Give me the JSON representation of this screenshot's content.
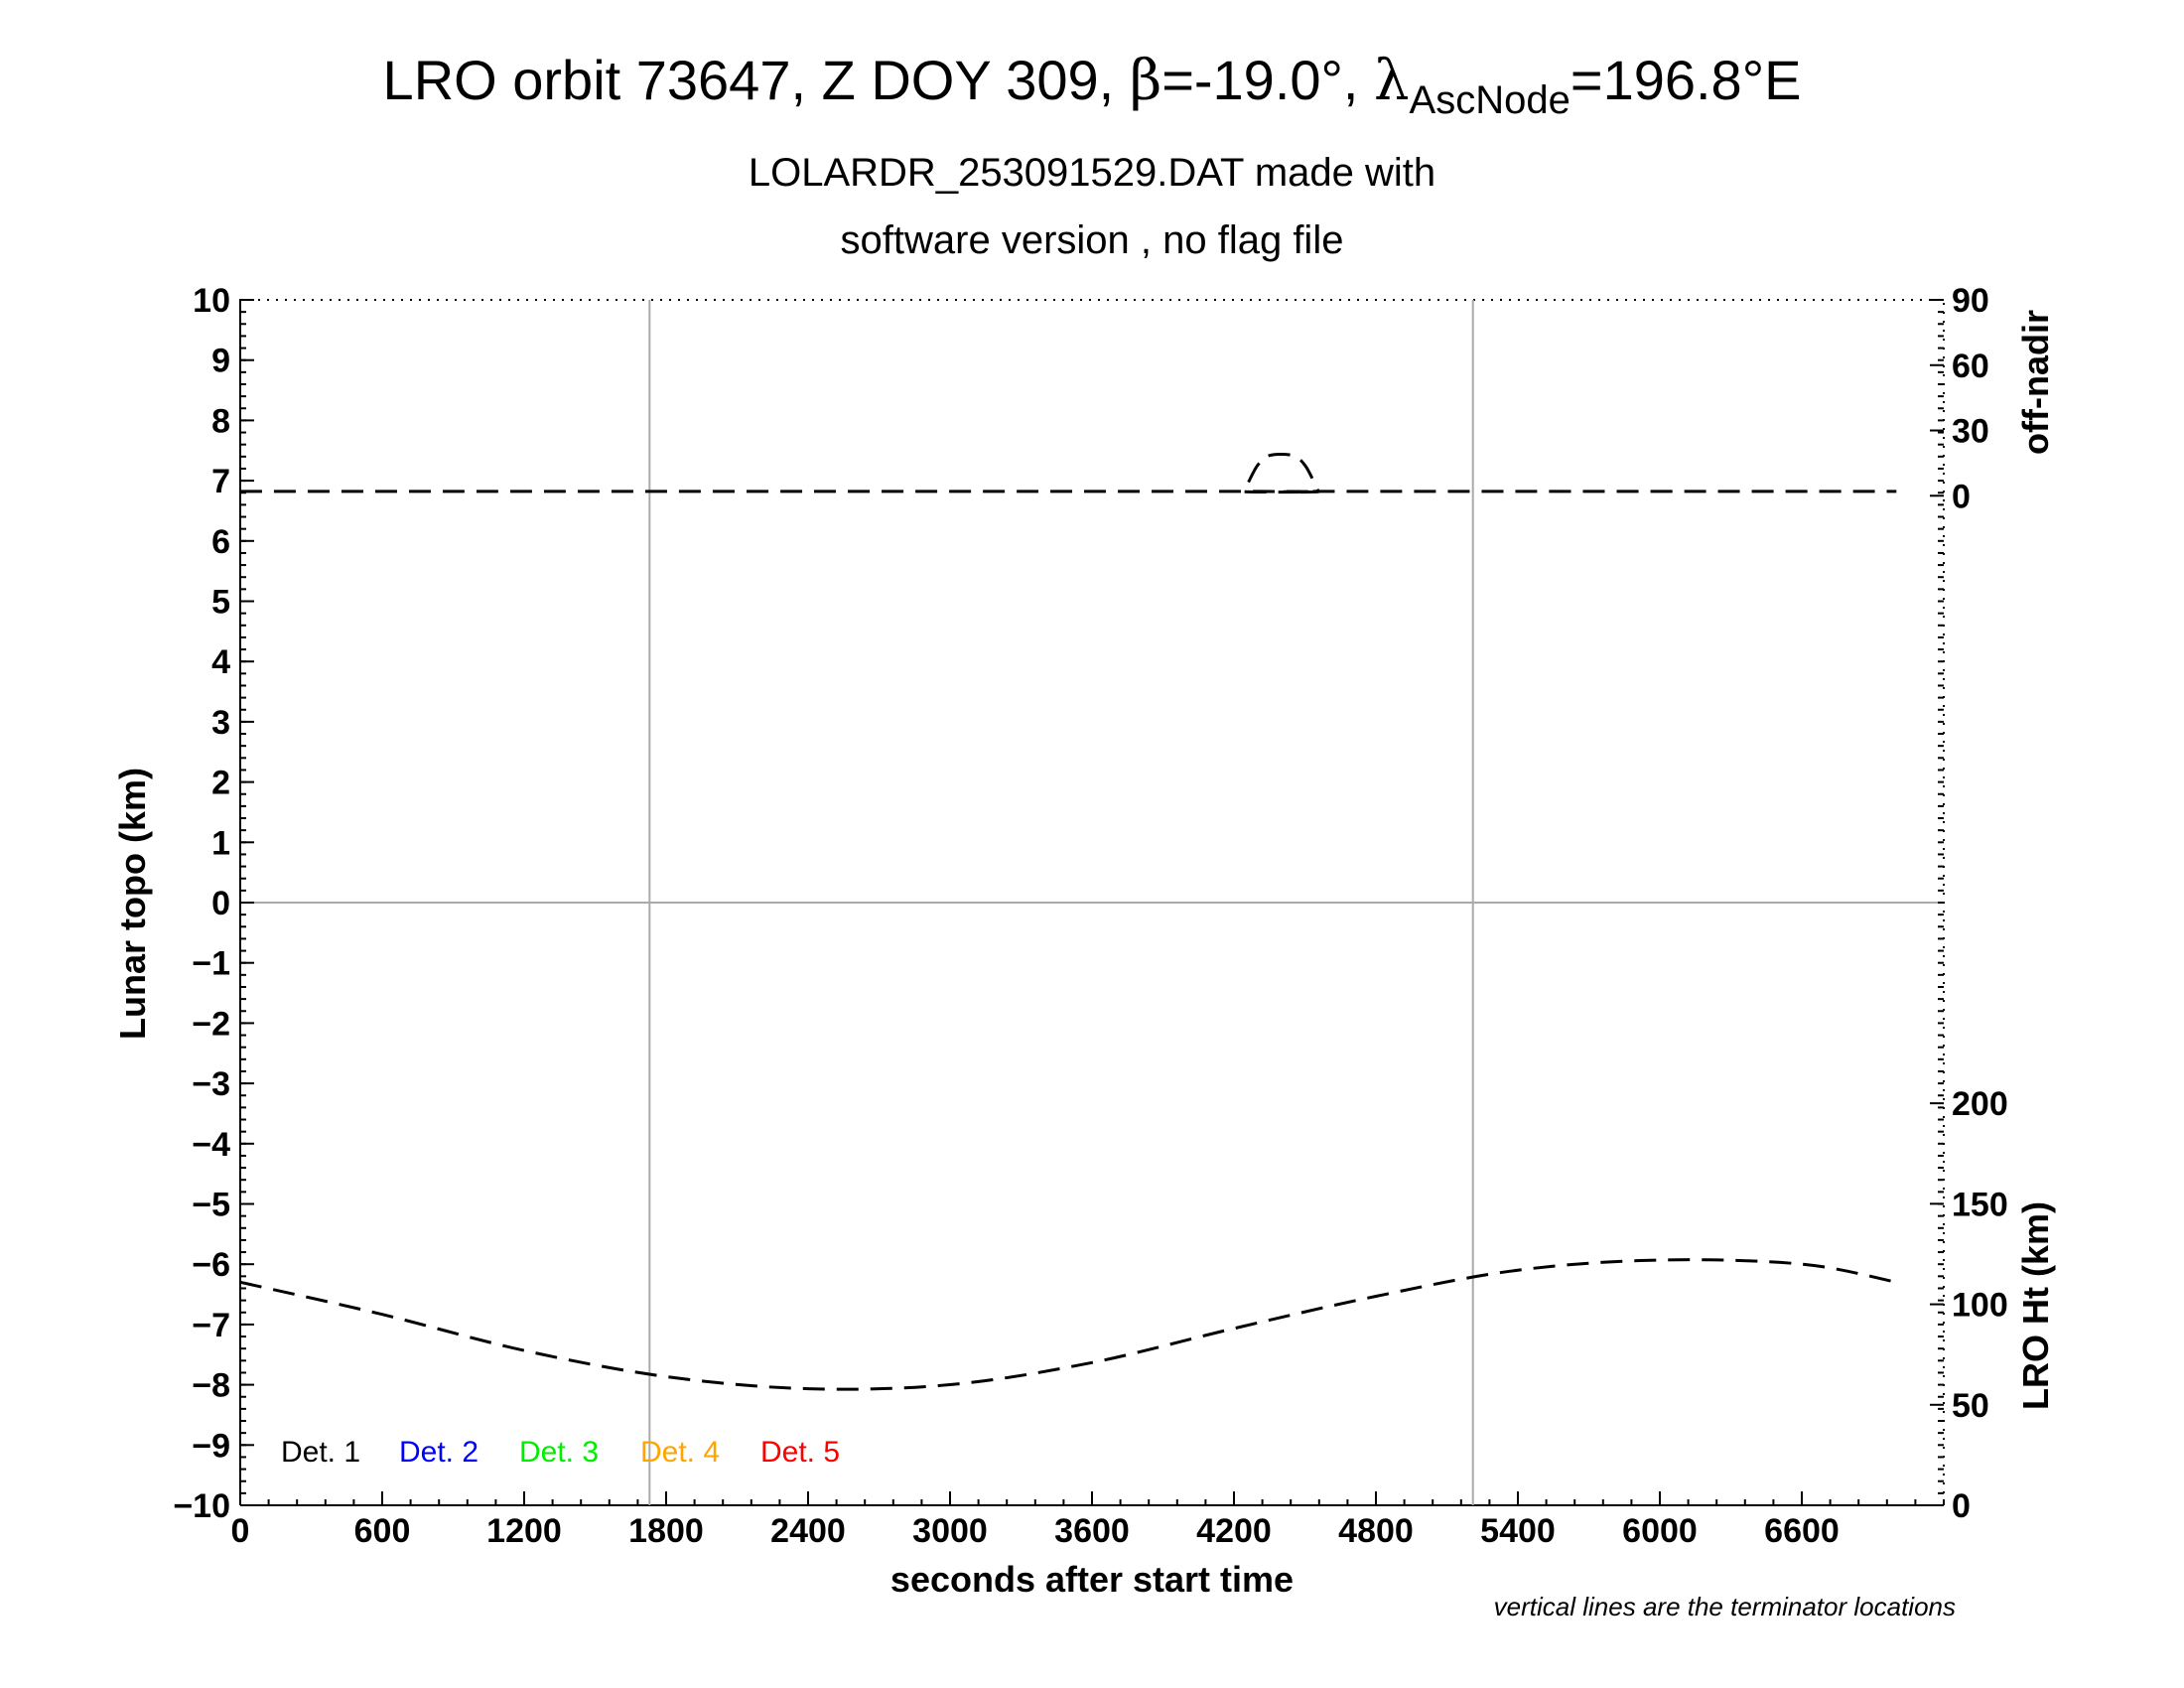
{
  "chart_data": {
    "type": "line",
    "title": {
      "prefix": "LRO orbit 73647, Z DOY 309, ",
      "beta_symbol": "β",
      "beta_value": "=-19.0°, ",
      "lambda_symbol": "λ",
      "lambda_sub": "AscNode",
      "lambda_value": "=196.8°E"
    },
    "subtitle_line1": "LOLARDR_253091529.DAT made  with",
    "subtitle_line2": "software version , no flag file",
    "xlabel": "seconds after start time",
    "ylabel_left": "Lunar topo (km)",
    "ylabel_right_top": "off-nadir",
    "ylabel_right_bottom": "LRO Ht (km)",
    "note": "vertical lines are the terminator locations",
    "xlim": [
      0,
      7200
    ],
    "ylim_left": [
      -10,
      10
    ],
    "x_ticks": [
      "0",
      "600",
      "1200",
      "1800",
      "2400",
      "3000",
      "3600",
      "4200",
      "4800",
      "5400",
      "6000",
      "6600"
    ],
    "x_tick_values": [
      0,
      600,
      1200,
      1800,
      2400,
      3000,
      3600,
      4200,
      4800,
      5400,
      6000,
      6600
    ],
    "y_ticks_left": [
      "10",
      "9",
      "8",
      "7",
      "6",
      "5",
      "4",
      "3",
      "2",
      "1",
      "0",
      "−1",
      "−2",
      "−3",
      "−4",
      "−5",
      "−6",
      "−7",
      "−8",
      "−9",
      "−10"
    ],
    "y_tick_values_left": [
      10,
      9,
      8,
      7,
      6,
      5,
      4,
      3,
      2,
      1,
      0,
      -1,
      -2,
      -3,
      -4,
      -5,
      -6,
      -7,
      -8,
      -9,
      -10
    ],
    "offnadir_axis": {
      "ticks": [
        "90",
        "60",
        "30",
        "0"
      ],
      "tick_values": [
        90,
        60,
        30,
        0
      ],
      "range": [
        0,
        90
      ],
      "maps_to_left_km": [
        6.75,
        10
      ]
    },
    "height_axis": {
      "ticks": [
        "200",
        "150",
        "100",
        "50",
        "0"
      ],
      "tick_values": [
        200,
        150,
        100,
        50,
        0
      ],
      "range": [
        0,
        200
      ],
      "maps_to_left_km": [
        -10,
        -3.33
      ]
    },
    "terminators": [
      1730,
      5210
    ],
    "legend": [
      {
        "label": "Det. 1",
        "color": "#000000"
      },
      {
        "label": "Det. 2",
        "color": "#0000ff"
      },
      {
        "label": "Det. 3",
        "color": "#00ee00"
      },
      {
        "label": "Det. 4",
        "color": "#ffa500"
      },
      {
        "label": "Det. 5",
        "color": "#ff0000"
      }
    ],
    "series": [
      {
        "name": "off-nadir angle (deg)",
        "axis": "offnadir",
        "style": "dashed",
        "x": [
          0,
          4200,
          4240,
          4260,
          4300,
          4350,
          4450,
          4500,
          4540,
          4560,
          4600,
          7000
        ],
        "y": [
          2,
          2,
          2,
          6,
          14,
          18.5,
          18.5,
          14,
          6,
          2,
          2,
          2
        ]
      },
      {
        "name": "LRO height (km)",
        "axis": "height",
        "style": "dashed",
        "x": [
          0,
          600,
          1200,
          1800,
          2400,
          3000,
          3600,
          4200,
          4800,
          5400,
          6000,
          6600,
          7000
        ],
        "y": [
          111,
          95,
          77,
          64,
          58,
          60,
          71,
          88,
          104,
          117,
          122,
          120,
          111
        ]
      }
    ]
  }
}
